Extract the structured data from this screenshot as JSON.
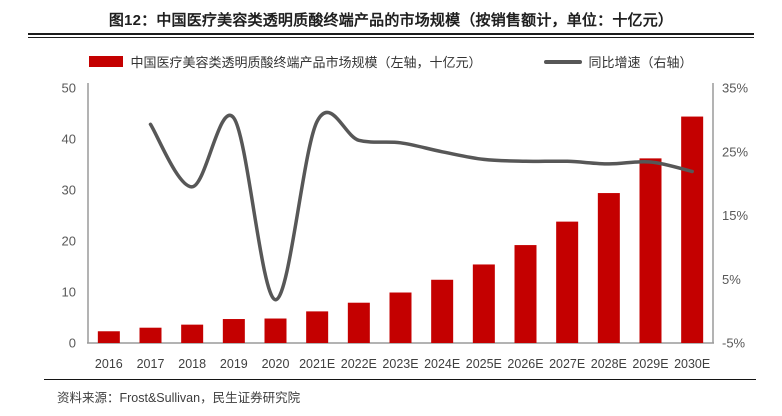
{
  "figure": {
    "title": "图12：中国医疗美容类透明质酸终端产品的市场规模（按销售额计，单位：十亿元）",
    "source": "资料来源：Frost&Sullivan，民生证券研究院"
  },
  "legend": {
    "bar_label": "中国医疗美容类透明质酸终端产品市场规模（左轴，十亿元）",
    "line_label": "同比增速（右轴）"
  },
  "colors": {
    "bar": "#c40000",
    "line": "#575757",
    "axis": "#9a9a9a",
    "tick_text": "#595959",
    "x_label_text": "#3f3f3f"
  },
  "chart_data": {
    "type": "bar",
    "title": "中国医疗美容类透明质酸终端产品的市场规模（按销售额计，单位：十亿元）",
    "categories": [
      "2016",
      "2017",
      "2018",
      "2019",
      "2020",
      "2021E",
      "2022E",
      "2023E",
      "2024E",
      "2025E",
      "2026E",
      "2027E",
      "2028E",
      "2029E",
      "2030E"
    ],
    "series": [
      {
        "name": "中国医疗美容类透明质酸终端产品市场规模（左轴，十亿元）",
        "type": "bar",
        "axis": "left",
        "values": [
          2.3,
          3.0,
          3.6,
          4.7,
          4.8,
          6.2,
          7.9,
          9.9,
          12.4,
          15.4,
          19.2,
          23.8,
          29.4,
          36.2,
          44.4
        ]
      },
      {
        "name": "同比增速（右轴）",
        "type": "line",
        "axis": "right",
        "values": [
          null,
          29.3,
          19.5,
          30.3,
          1.8,
          29.8,
          26.8,
          26.4,
          25.0,
          23.8,
          23.5,
          23.5,
          23.1,
          23.4,
          21.9
        ]
      }
    ],
    "left_axis": {
      "min": 0,
      "max": 50,
      "ticks": [
        0,
        10,
        20,
        30,
        40,
        50
      ]
    },
    "right_axis": {
      "min": -5,
      "max": 35,
      "ticks": [
        -5,
        5,
        15,
        25,
        35
      ],
      "format": "percent"
    },
    "grid": false,
    "legend_position": "top"
  }
}
